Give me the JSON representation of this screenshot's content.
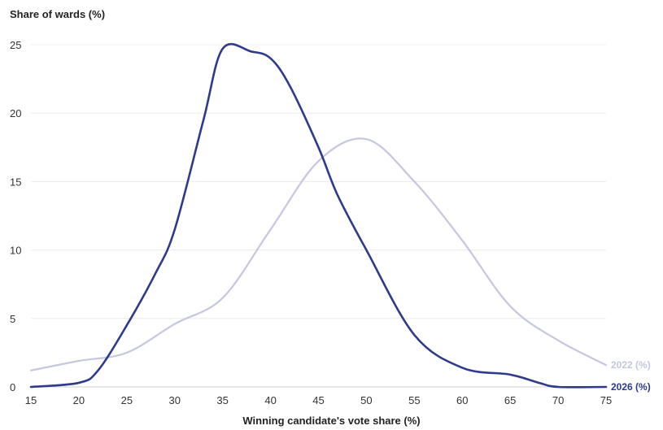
{
  "chart_data": {
    "type": "line",
    "ylabel": "Share of wards (%)",
    "xlabel": "Winning candidate's vote share (%)",
    "xlim": [
      15,
      75
    ],
    "ylim": [
      0,
      25
    ],
    "xticks": [
      15,
      20,
      25,
      30,
      35,
      40,
      45,
      50,
      55,
      60,
      65,
      70,
      75
    ],
    "yticks": [
      0,
      5,
      10,
      15,
      20,
      25
    ],
    "grid": true,
    "legend": "direct labels at right end of lines",
    "series": [
      {
        "name": "2022 (%)",
        "color": "#c5c6e0",
        "points": [
          [
            15,
            1.2
          ],
          [
            20,
            1.9
          ],
          [
            25,
            2.5
          ],
          [
            30,
            4.6
          ],
          [
            35,
            6.5
          ],
          [
            40,
            11.5
          ],
          [
            45,
            16.5
          ],
          [
            50,
            18.1
          ],
          [
            55,
            15.0
          ],
          [
            60,
            10.7
          ],
          [
            65,
            5.9
          ],
          [
            70,
            3.4
          ],
          [
            75,
            1.6
          ]
        ]
      },
      {
        "name": "2026 (%)",
        "color": "#2e3b8c",
        "points": [
          [
            15,
            0.0
          ],
          [
            20,
            0.3
          ],
          [
            22,
            1.2
          ],
          [
            25,
            4.5
          ],
          [
            28,
            8.3
          ],
          [
            30,
            11.5
          ],
          [
            33,
            19.5
          ],
          [
            35,
            24.7
          ],
          [
            38,
            24.5
          ],
          [
            40,
            24.0
          ],
          [
            42,
            22.0
          ],
          [
            45,
            17.5
          ],
          [
            47,
            14.0
          ],
          [
            50,
            10.0
          ],
          [
            55,
            3.8
          ],
          [
            60,
            1.4
          ],
          [
            65,
            0.9
          ],
          [
            68,
            0.3
          ],
          [
            70,
            0.0
          ],
          [
            75,
            0.0
          ]
        ]
      }
    ]
  }
}
